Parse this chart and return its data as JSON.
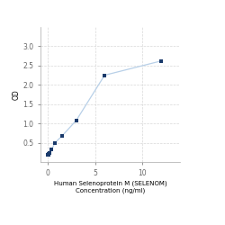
{
  "x": [
    0,
    0.0469,
    0.0938,
    0.1875,
    0.375,
    0.75,
    1.5,
    3,
    6,
    12
  ],
  "y": [
    0.182,
    0.197,
    0.21,
    0.24,
    0.32,
    0.5,
    0.68,
    1.08,
    2.25,
    2.62
  ],
  "line_color": "#b8d0e8",
  "marker_color": "#1a3a6b",
  "marker_size": 12,
  "xlabel_line1": "Human Selenoprotein M (SELENOM)",
  "xlabel_line2": "Concentration (ng/ml)",
  "ylabel": "OD",
  "xlim": [
    -0.8,
    14
  ],
  "ylim": [
    0.0,
    3.5
  ],
  "yticks": [
    0.5,
    1.0,
    1.5,
    2.0,
    2.5,
    3.0
  ],
  "ytick_labels": [
    "0.5",
    "1.0",
    "1.5",
    "2.0",
    "2.5",
    "3.0"
  ],
  "xticks": [
    0,
    5,
    10
  ],
  "xtick_labels": [
    "0",
    "5",
    "10"
  ],
  "grid_color": "#d8d8d8",
  "bg_color": "#ffffff",
  "fig_bg_color": "#ffffff",
  "label_fontsize": 5.0,
  "tick_fontsize": 5.5,
  "ylabel_fontsize": 5.5
}
